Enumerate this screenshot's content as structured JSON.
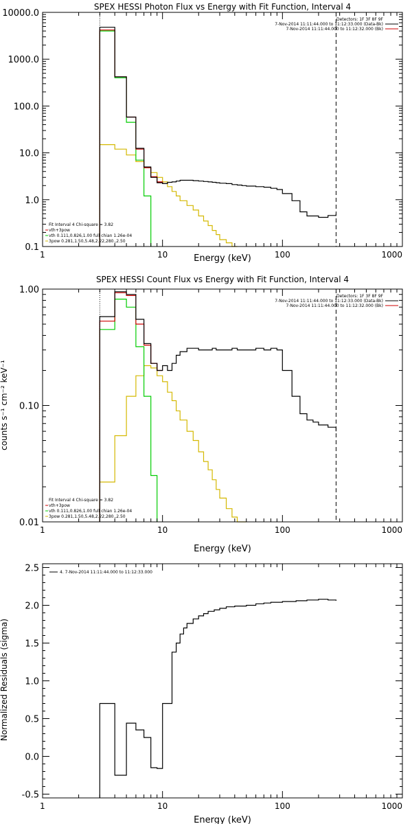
{
  "colors": {
    "data": "#000000",
    "total": "#cc0000",
    "vth": "#00cc00",
    "pow": "#d4b800",
    "marker": "#000000"
  },
  "chart_data": [
    {
      "type": "line",
      "title": "SPEX HESSI Photon Flux vs Energy with Fit Function, Interval 4",
      "xlabel": "Energy (keV)",
      "ylabel": "",
      "xscale": "log",
      "yscale": "log",
      "xlim": [
        1,
        1000
      ],
      "ylim": [
        0.1,
        10000
      ],
      "xticks": [
        {
          "v": 1,
          "t": "1"
        },
        {
          "v": 10,
          "t": "10"
        },
        {
          "v": 100,
          "t": "100"
        },
        {
          "v": 1000,
          "t": "1000"
        }
      ],
      "yticks": [
        {
          "v": 0.1,
          "t": "0.1"
        },
        {
          "v": 1,
          "t": "1.0"
        },
        {
          "v": 10,
          "t": "10.0"
        },
        {
          "v": 100,
          "t": "100.0"
        },
        {
          "v": 1000,
          "t": "1000.0"
        },
        {
          "v": 10000,
          "t": "10000.0"
        }
      ],
      "grid": false,
      "vlines": [
        {
          "x": 3,
          "style": "dotted"
        },
        {
          "x": 280,
          "style": "dashed"
        }
      ],
      "legend_topright": {
        "lines": [
          {
            "text": "Detectors: 1F 3F 8F 9F",
            "color": ""
          },
          {
            "text": "7-Nov-2014 11:11:44.000 to 11:12:33.000 (Data-Bk)",
            "color": "data"
          },
          {
            "text": "7-Nov-2014 11:11:44.000 to 11:12:32.000 (Bk)",
            "color": "total"
          }
        ]
      },
      "legend_bottomleft": {
        "lines": [
          {
            "text": "Fit Interval  4    Chi-square = 3.82",
            "color": ""
          },
          {
            "text": "vth+3pow",
            "color": "total"
          },
          {
            "text": "vth 0.111,0.826,1.00  full chian 1.26e-04",
            "color": "vth"
          },
          {
            "text": "3pow 0.281,1.50,5.48,2.22,280.,2.50",
            "color": "pow"
          }
        ]
      },
      "series": [
        {
          "role": "data",
          "color": "data",
          "edges": [
            3.0,
            4.0,
            5.0,
            6.0,
            7.0,
            8.0,
            9.0,
            10.0,
            11.0,
            12.0,
            13.0,
            14.0,
            16.0,
            18.0,
            20.0,
            22.0,
            24.0,
            26.0,
            28.0,
            30.0,
            34.0,
            38.0,
            42.0,
            46.0,
            50.0,
            60.0,
            70.0,
            80.0,
            90.0,
            100.0,
            120.0,
            140.0,
            160.0,
            180.0,
            200.0,
            240.0,
            280.0
          ],
          "values": [
            4800,
            420,
            58,
            12.5,
            5.0,
            3.0,
            2.3,
            2.2,
            2.35,
            2.4,
            2.5,
            2.6,
            2.6,
            2.55,
            2.5,
            2.45,
            2.4,
            2.35,
            2.3,
            2.25,
            2.2,
            2.1,
            2.05,
            2.0,
            1.95,
            1.9,
            1.85,
            1.75,
            1.65,
            1.35,
            0.95,
            0.55,
            0.45,
            0.45,
            0.42,
            0.46,
            0.5
          ]
        },
        {
          "role": "total",
          "color": "total",
          "edges": [
            3.0,
            4.0,
            5.0,
            6.0,
            7.0,
            8.0,
            9.0,
            10.0
          ],
          "values": [
            4200,
            420,
            58,
            12,
            4.8,
            3.1,
            2.4,
            2.2
          ]
        },
        {
          "role": "vth",
          "color": "vth",
          "edges": [
            3.0,
            4.0,
            5.0,
            6.0,
            7.0,
            8.0
          ],
          "values": [
            4000,
            400,
            45,
            7,
            1.2,
            0.1
          ]
        },
        {
          "role": "pow",
          "color": "pow",
          "edges": [
            3.0,
            4.0,
            5.0,
            6.0,
            7.0,
            8.0,
            9.0,
            10.0,
            11.0,
            12.0,
            13.0,
            14.0,
            16.0,
            18.0,
            20.0,
            22.0,
            24.0,
            26.0,
            28.0,
            30.0,
            34.0,
            38.0,
            42.0
          ],
          "values": [
            15,
            12,
            9,
            6.5,
            4.8,
            3.8,
            3.0,
            2.4,
            1.9,
            1.5,
            1.2,
            0.95,
            0.75,
            0.6,
            0.45,
            0.35,
            0.28,
            0.22,
            0.18,
            0.14,
            0.12,
            0.1,
            0.1
          ]
        }
      ]
    },
    {
      "type": "line",
      "title": "SPEX HESSI Count Flux vs Energy with Fit Function, Interval 4",
      "xlabel": "Energy (keV)",
      "ylabel": "counts s⁻¹ cm⁻² keV⁻¹",
      "xscale": "log",
      "yscale": "log",
      "xlim": [
        1,
        1000
      ],
      "ylim": [
        0.01,
        1.0
      ],
      "xticks": [
        {
          "v": 1,
          "t": "1"
        },
        {
          "v": 10,
          "t": "10"
        },
        {
          "v": 100,
          "t": "100"
        },
        {
          "v": 1000,
          "t": "1000"
        }
      ],
      "yticks": [
        {
          "v": 0.01,
          "t": "0.01"
        },
        {
          "v": 0.1,
          "t": "0.10"
        },
        {
          "v": 1,
          "t": "1.00"
        }
      ],
      "grid": false,
      "vlines": [
        {
          "x": 3,
          "style": "dotted"
        },
        {
          "x": 280,
          "style": "dashed"
        }
      ],
      "legend_topright": {
        "lines": [
          {
            "text": "Detectors: 1F 3F 8F 9F",
            "color": ""
          },
          {
            "text": "7-Nov-2014 11:11:44.000 to 11:12:33.000 (Data-Bk)",
            "color": "data"
          },
          {
            "text": "7-Nov-2014 11:11:44.000 to 11:12:32.000 (Bk)",
            "color": "total"
          }
        ]
      },
      "legend_bottomleft": {
        "lines": [
          {
            "text": "Fit Interval  4    Chi-square = 3.82",
            "color": ""
          },
          {
            "text": "vth+3pow",
            "color": "total"
          },
          {
            "text": "vth 0.111,0.826,1.00  full chian 1.26e-04",
            "color": "vth"
          },
          {
            "text": "3pow 0.281,1.50,5.48,2.22,280.,2.50",
            "color": "pow"
          }
        ]
      },
      "series": [
        {
          "role": "data",
          "color": "data",
          "edges": [
            3.0,
            4.0,
            5.0,
            6.0,
            7.0,
            8.0,
            9.0,
            10.0,
            11.0,
            12.0,
            13.0,
            14.0,
            16.0,
            18.0,
            20.0,
            22.0,
            24.0,
            26.0,
            28.0,
            30.0,
            34.0,
            38.0,
            42.0,
            46.0,
            50.0,
            60.0,
            70.0,
            80.0,
            90.0,
            100.0,
            120.0,
            140.0,
            160.0,
            180.0,
            200.0,
            240.0,
            280.0
          ],
          "values": [
            0.58,
            0.95,
            0.9,
            0.55,
            0.34,
            0.23,
            0.2,
            0.22,
            0.2,
            0.23,
            0.27,
            0.29,
            0.31,
            0.31,
            0.3,
            0.3,
            0.3,
            0.31,
            0.3,
            0.3,
            0.3,
            0.31,
            0.3,
            0.3,
            0.3,
            0.31,
            0.3,
            0.31,
            0.3,
            0.2,
            0.12,
            0.085,
            0.075,
            0.072,
            0.068,
            0.065,
            0.06
          ]
        },
        {
          "role": "total",
          "color": "total",
          "edges": [
            3.0,
            4.0,
            5.0,
            6.0,
            7.0,
            8.0,
            9.0,
            10.0
          ],
          "values": [
            0.53,
            0.93,
            0.88,
            0.5,
            0.33,
            0.23,
            0.2,
            0.2
          ]
        },
        {
          "role": "vth",
          "color": "vth",
          "edges": [
            3.0,
            4.0,
            5.0,
            6.0,
            7.0,
            8.0,
            9.0
          ],
          "values": [
            0.45,
            0.82,
            0.7,
            0.32,
            0.12,
            0.025,
            0.009
          ]
        },
        {
          "role": "pow",
          "color": "pow",
          "edges": [
            3.0,
            4.0,
            5.0,
            6.0,
            7.0,
            8.0,
            9.0,
            10.0,
            11.0,
            12.0,
            13.0,
            14.0,
            16.0,
            18.0,
            20.0,
            22.0,
            24.0,
            26.0,
            28.0,
            30.0,
            34.0,
            38.0,
            42.0,
            46.0,
            50.0
          ],
          "values": [
            0.022,
            0.055,
            0.12,
            0.18,
            0.22,
            0.21,
            0.18,
            0.16,
            0.13,
            0.11,
            0.09,
            0.075,
            0.06,
            0.05,
            0.04,
            0.033,
            0.028,
            0.023,
            0.019,
            0.016,
            0.013,
            0.011,
            0.009,
            0.009,
            0.009
          ]
        }
      ]
    },
    {
      "type": "line",
      "title": "",
      "xlabel": "Energy (keV)",
      "ylabel": "Normalized Residuals (sigma)",
      "xscale": "log",
      "yscale": "linear",
      "xlim": [
        1,
        1000
      ],
      "ylim": [
        -0.55,
        2.55
      ],
      "xticks": [
        {
          "v": 1,
          "t": "1"
        },
        {
          "v": 10,
          "t": "10"
        },
        {
          "v": 100,
          "t": "100"
        },
        {
          "v": 1000,
          "t": "1000"
        }
      ],
      "yticks": [
        {
          "v": -0.5,
          "t": "-0.5"
        },
        {
          "v": 0.0,
          "t": "0.0"
        },
        {
          "v": 0.5,
          "t": "0.5"
        },
        {
          "v": 1.0,
          "t": "1.0"
        },
        {
          "v": 1.5,
          "t": "1.5"
        },
        {
          "v": 2.0,
          "t": "2.0"
        },
        {
          "v": 2.5,
          "t": "2.5"
        }
      ],
      "grid": false,
      "vlines": [],
      "legend_topleft": {
        "lines": [
          {
            "text": "4.  7-Nov-2014 11:11:44.000 to 11:12:33.000",
            "color": "data"
          }
        ]
      },
      "series": [
        {
          "role": "data",
          "color": "data",
          "edges": [
            3.0,
            4.0,
            5.0,
            6.0,
            7.0,
            8.0,
            9.0,
            10.0,
            12.0,
            13.0,
            14.0,
            15.0,
            16.0,
            18.0,
            20.0,
            22.0,
            24.0,
            27.0,
            30.0,
            34.0,
            40.0,
            50.0,
            60.0,
            70.0,
            80.0,
            100.0,
            130.0,
            160.0,
            200.0,
            240.0,
            280.0
          ],
          "values": [
            0.7,
            -0.25,
            0.44,
            0.35,
            0.25,
            -0.15,
            -0.16,
            0.7,
            1.38,
            1.5,
            1.62,
            1.7,
            1.76,
            1.82,
            1.86,
            1.89,
            1.92,
            1.94,
            1.96,
            1.98,
            1.99,
            2.0,
            2.02,
            2.03,
            2.04,
            2.05,
            2.06,
            2.07,
            2.08,
            2.07,
            2.06
          ]
        }
      ]
    }
  ]
}
